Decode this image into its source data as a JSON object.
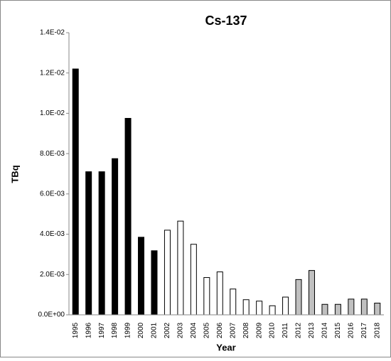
{
  "chart_data": {
    "type": "bar",
    "title": "Cs-137",
    "x_label": "Year",
    "y_label": "TBq",
    "categories": [
      "1995",
      "1996",
      "1997",
      "1998",
      "1999",
      "2000",
      "2001",
      "2002",
      "2003",
      "2004",
      "2005",
      "2006",
      "2007",
      "2008",
      "2009",
      "2010",
      "2011",
      "2012",
      "2013",
      "2014",
      "2015",
      "2016",
      "2017",
      "2018"
    ],
    "values": [
      0.0122,
      0.0071,
      0.0071,
      0.00775,
      0.00975,
      0.00385,
      0.00318,
      0.0042,
      0.00465,
      0.0035,
      0.00185,
      0.00213,
      0.00128,
      0.00075,
      0.00068,
      0.00045,
      0.00088,
      0.00175,
      0.0022,
      0.00052,
      0.00052,
      0.00078,
      0.00078,
      0.00058
    ],
    "colors": [
      "#000000",
      "#000000",
      "#000000",
      "#000000",
      "#000000",
      "#000000",
      "#000000",
      "#ffffff",
      "#ffffff",
      "#ffffff",
      "#ffffff",
      "#ffffff",
      "#ffffff",
      "#ffffff",
      "#ffffff",
      "#ffffff",
      "#ffffff",
      "#c0c0c0",
      "#c0c0c0",
      "#c0c0c0",
      "#c0c0c0",
      "#c0c0c0",
      "#c0c0c0",
      "#c0c0c0"
    ],
    "ylim": [
      0,
      0.014
    ],
    "yticks": [
      {
        "value": 0,
        "label": "0.0E+00"
      },
      {
        "value": 0.002,
        "label": "2.0E-03"
      },
      {
        "value": 0.004,
        "label": "4.0E-03"
      },
      {
        "value": 0.006,
        "label": "6.0E-03"
      },
      {
        "value": 0.008,
        "label": "8.0E-03"
      },
      {
        "value": 0.01,
        "label": "1.0E-02"
      },
      {
        "value": 0.012,
        "label": "1.2E-02"
      },
      {
        "value": 0.014,
        "label": "1.4E-02"
      }
    ],
    "grid": false
  }
}
